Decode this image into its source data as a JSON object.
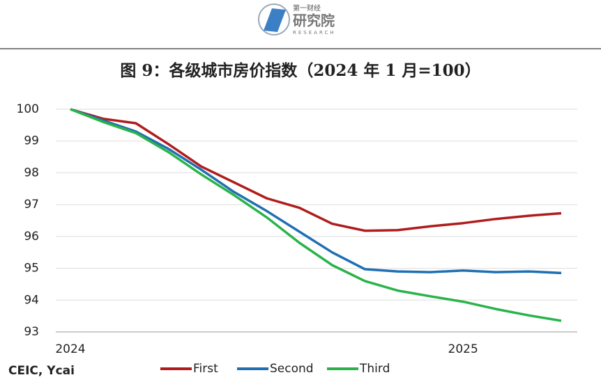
{
  "logo": {
    "top": "第一财经",
    "main": "研究院",
    "sub": "RESEARCH"
  },
  "chart_data": {
    "type": "line",
    "title": "图 9：各级城市房价指数（2024 年 1 月=100）",
    "source": "CEIC, Ycai",
    "categories": [
      "2024",
      null,
      null,
      null,
      null,
      null,
      null,
      null,
      null,
      null,
      null,
      null,
      "2025",
      null,
      null,
      null
    ],
    "series": [
      {
        "name": "First",
        "color": "#b01c1c",
        "values": [
          100,
          99.7,
          99.56,
          98.9,
          98.2,
          97.7,
          97.2,
          96.9,
          96.4,
          96.18,
          96.2,
          96.32,
          96.42,
          96.55,
          96.65,
          96.73
        ]
      },
      {
        "name": "Second",
        "color": "#1f6fb2",
        "values": [
          100,
          99.65,
          99.3,
          98.75,
          98.1,
          97.4,
          96.8,
          96.15,
          95.5,
          94.97,
          94.9,
          94.88,
          94.93,
          94.88,
          94.9,
          94.85
        ]
      },
      {
        "name": "Third",
        "color": "#2ab34a",
        "values": [
          100,
          99.6,
          99.25,
          98.65,
          97.95,
          97.3,
          96.6,
          95.8,
          95.1,
          94.6,
          94.3,
          94.12,
          93.95,
          93.72,
          93.52,
          93.35
        ]
      }
    ],
    "ylim": [
      93,
      100
    ],
    "yticks": [
      93,
      94,
      95,
      96,
      97,
      98,
      99,
      100
    ],
    "grid": true,
    "legend": "bottom"
  }
}
